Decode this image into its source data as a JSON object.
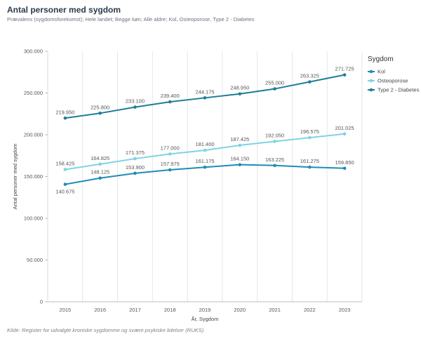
{
  "header": {
    "title": "Antal personer med sygdom",
    "subtitle": "Prævalens (sygdomsforekomst); Hele landet; Begge køn; Alle aldre; Kol, Osteoporose, Type 2 - Diabetes"
  },
  "footer": {
    "source": "Kilde: Register for udvalgte kroniske sygdomme og svære psykiske lidelser (RUKS)"
  },
  "chart_data": {
    "type": "line",
    "x": [
      "2015",
      "2016",
      "2017",
      "2018",
      "2019",
      "2020",
      "2021",
      "2022",
      "2023"
    ],
    "xlabel": "År, Sygdom",
    "ylabel": "Antal personer med sygdom",
    "ylim": [
      0,
      300000
    ],
    "yticks": [
      0,
      50000,
      100000,
      150000,
      200000,
      250000,
      300000
    ],
    "ytick_labels": [
      "0",
      "50.000",
      "100.000",
      "150.000",
      "200.000",
      "250.000",
      "300.000"
    ],
    "grid": "vertical",
    "legend": {
      "title": "Sygdom",
      "position": "right"
    },
    "series": [
      {
        "name": "Kol",
        "color": "#1e8db4",
        "values": [
          140675,
          148125,
          153900,
          157975,
          161175,
          164150,
          163225,
          161275,
          159850
        ],
        "labels": [
          "140.675",
          "148.125",
          "153.900",
          "157.975",
          "161.175",
          "164.150",
          "163.225",
          "161.275",
          "159.850"
        ]
      },
      {
        "name": "Osteoporose",
        "color": "#7fd3e3",
        "values": [
          158425,
          164825,
          171375,
          177000,
          181400,
          187425,
          192050,
          196575,
          201025
        ],
        "labels": [
          "158.425",
          "164.825",
          "171.375",
          "177.000",
          "181.400",
          "187.425",
          "192.050",
          "196.575",
          "201.025"
        ]
      },
      {
        "name": "Type 2 - Diabetes",
        "color": "#1e7d99",
        "values": [
          219950,
          225800,
          233100,
          239400,
          244175,
          248950,
          255000,
          263325,
          271725
        ],
        "labels": [
          "219.950",
          "225.800",
          "233.100",
          "239.400",
          "244.175",
          "248.950",
          "255.000",
          "263.325",
          "271.725"
        ]
      }
    ]
  }
}
